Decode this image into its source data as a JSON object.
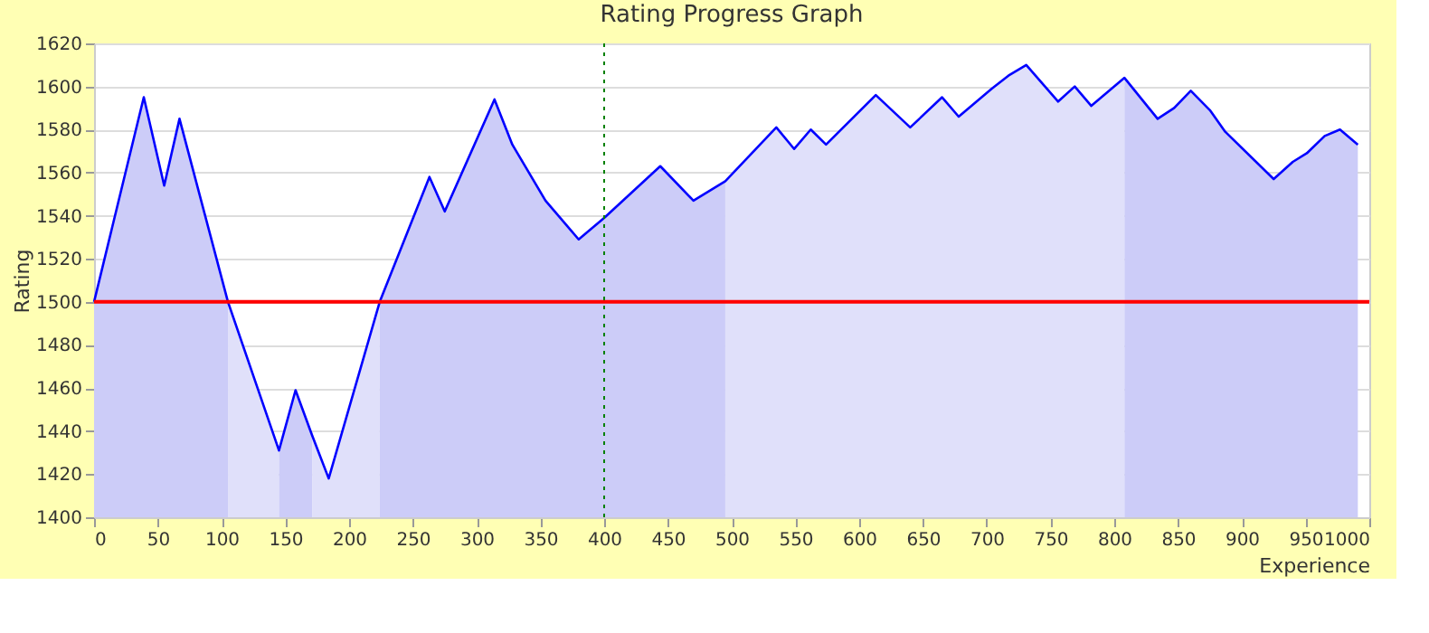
{
  "chart_data": {
    "type": "line",
    "title": "Rating Progress Graph",
    "xlabel": "Experience",
    "ylabel": "Rating",
    "xlim": [
      0,
      1000
    ],
    "xticks": [
      0,
      50,
      100,
      150,
      200,
      250,
      300,
      350,
      400,
      450,
      500,
      550,
      600,
      650,
      700,
      750,
      800,
      850,
      900,
      950,
      1000
    ],
    "ylim": [
      1400,
      1620
    ],
    "yticks": [
      1400,
      1420,
      1440,
      1460,
      1480,
      1500,
      1520,
      1540,
      1560,
      1580,
      1600,
      1620
    ],
    "grid": "y",
    "marker": "none",
    "line_style": "solid",
    "series": [
      {
        "type": "area",
        "color": "#ccccf8",
        "x": [
          0,
          39,
          55,
          67,
          105
        ],
        "values": [
          1500,
          1595,
          1554,
          1585,
          1500
        ]
      },
      {
        "type": "area",
        "color": "#e0e0fa",
        "x": [
          105,
          145
        ],
        "values": [
          1500,
          1431
        ]
      },
      {
        "type": "area",
        "color": "#ccccf8",
        "x": [
          145,
          158,
          171
        ],
        "values": [
          1431,
          1459,
          1438
        ]
      },
      {
        "type": "area",
        "color": "#e0e0fa",
        "x": [
          171,
          184,
          224
        ],
        "values": [
          1438,
          1418,
          1500
        ]
      },
      {
        "type": "area",
        "color": "#ccccf8",
        "x": [
          224,
          263,
          275,
          314,
          328,
          354,
          380,
          400,
          444,
          470,
          495
        ],
        "values": [
          1500,
          1558,
          1542,
          1594,
          1573,
          1547,
          1529,
          1539,
          1563,
          1547,
          1556
        ]
      },
      {
        "type": "area",
        "color": "#e0e0fa",
        "x": [
          495,
          535,
          549,
          562,
          574,
          613,
          640,
          665,
          678,
          704,
          717,
          731,
          756,
          769,
          782,
          808
        ],
        "values": [
          1556,
          1581,
          1571,
          1580,
          1573,
          1596,
          1581,
          1595,
          1586,
          1599,
          1605,
          1610,
          1593,
          1600,
          1591,
          1604
        ]
      },
      {
        "type": "area",
        "color": "#ccccf8",
        "x": [
          808,
          834,
          847,
          860,
          875,
          887,
          925,
          940,
          951,
          965,
          977,
          991
        ],
        "values": [
          1604,
          1585,
          1590,
          1598,
          1589,
          1579,
          1557,
          1565,
          1569,
          1577,
          1580,
          1573
        ]
      },
      {
        "color": "#0000ff",
        "x": [
          0,
          39,
          55,
          67,
          105,
          145,
          158,
          171,
          184,
          224,
          263,
          275,
          314,
          328,
          354,
          380,
          400,
          444,
          470,
          495,
          535,
          549,
          562,
          574,
          613,
          640,
          665,
          678,
          704,
          717,
          731,
          756,
          769,
          782,
          808,
          834,
          847,
          860,
          875,
          887,
          925,
          940,
          951,
          965,
          977,
          991
        ],
        "values": [
          1500,
          1595,
          1554,
          1585,
          1500,
          1431,
          1459,
          1438,
          1418,
          1500,
          1558,
          1542,
          1594,
          1573,
          1547,
          1529,
          1539,
          1563,
          1547,
          1556,
          1581,
          1571,
          1580,
          1573,
          1596,
          1581,
          1595,
          1586,
          1599,
          1605,
          1610,
          1593,
          1600,
          1591,
          1604,
          1585,
          1590,
          1598,
          1589,
          1579,
          1557,
          1565,
          1569,
          1577,
          1580,
          1573
        ]
      }
    ],
    "ref_lines": [
      {
        "axis": "y",
        "value": 1500,
        "color": "#ff0000",
        "line_style": "solid"
      },
      {
        "axis": "x",
        "value": 400,
        "color": "#008000",
        "line_style": "dotted"
      }
    ]
  }
}
